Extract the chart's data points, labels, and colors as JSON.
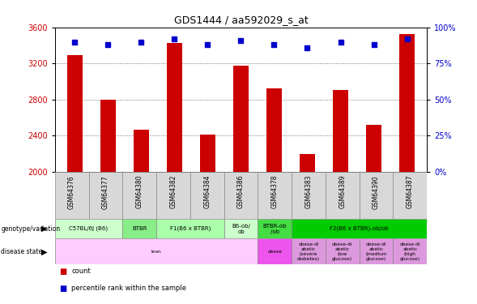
{
  "title": "GDS1444 / aa592029_s_at",
  "samples": [
    "GSM64376",
    "GSM64377",
    "GSM64380",
    "GSM64382",
    "GSM64384",
    "GSM64386",
    "GSM64378",
    "GSM64383",
    "GSM64389",
    "GSM64390",
    "GSM64387"
  ],
  "counts": [
    3290,
    2800,
    2470,
    3430,
    2415,
    3175,
    2920,
    2200,
    2910,
    2520,
    3530
  ],
  "percentiles": [
    90,
    88,
    90,
    92,
    88,
    91,
    88,
    86,
    90,
    88,
    92
  ],
  "ylim": [
    2000,
    3600
  ],
  "y2lim": [
    0,
    100
  ],
  "y_ticks": [
    2000,
    2400,
    2800,
    3200,
    3600
  ],
  "y2_ticks": [
    0,
    25,
    50,
    75,
    100
  ],
  "bar_color": "#cc0000",
  "scatter_color": "#0000cc",
  "grid_color": "#555555",
  "genotype_groups": [
    {
      "label": "C57BL/6J (B6)",
      "cols": [
        0,
        1
      ],
      "color": "#ccffcc"
    },
    {
      "label": "BTBR",
      "cols": [
        2
      ],
      "color": "#88ee88"
    },
    {
      "label": "F1(B6 x BTBR)",
      "cols": [
        3,
        4
      ],
      "color": "#aaffaa"
    },
    {
      "label": "B6-ob/\nob",
      "cols": [
        5
      ],
      "color": "#ccffcc"
    },
    {
      "label": "BTBR-ob\n/ob",
      "cols": [
        6
      ],
      "color": "#44dd44"
    },
    {
      "label": "F2(B6 x BTBR)-ob/ob",
      "cols": [
        7,
        8,
        9,
        10
      ],
      "color": "#00cc00"
    }
  ],
  "disease_groups": [
    {
      "label": "lean",
      "cols": [
        0,
        1,
        2,
        3,
        4,
        5
      ],
      "color": "#ffccff"
    },
    {
      "label": "obese",
      "cols": [
        6
      ],
      "color": "#ee55ee"
    },
    {
      "label": "obese-di\nabetic\n(severe\ndiabetes)",
      "cols": [
        7
      ],
      "color": "#dd99dd"
    },
    {
      "label": "obese-di\nabetic\n(low\nglucose)",
      "cols": [
        8
      ],
      "color": "#dd99dd"
    },
    {
      "label": "obese-di\nabetic\n(medium\nglucose)",
      "cols": [
        9
      ],
      "color": "#dd99dd"
    },
    {
      "label": "obese-di\nabetic\n(high\nglucose)",
      "cols": [
        10
      ],
      "color": "#dd99dd"
    }
  ],
  "bg_color": "#ffffff",
  "bar_width": 0.45,
  "label_color_geno": "genotype/variation",
  "label_color_dis": "disease state"
}
